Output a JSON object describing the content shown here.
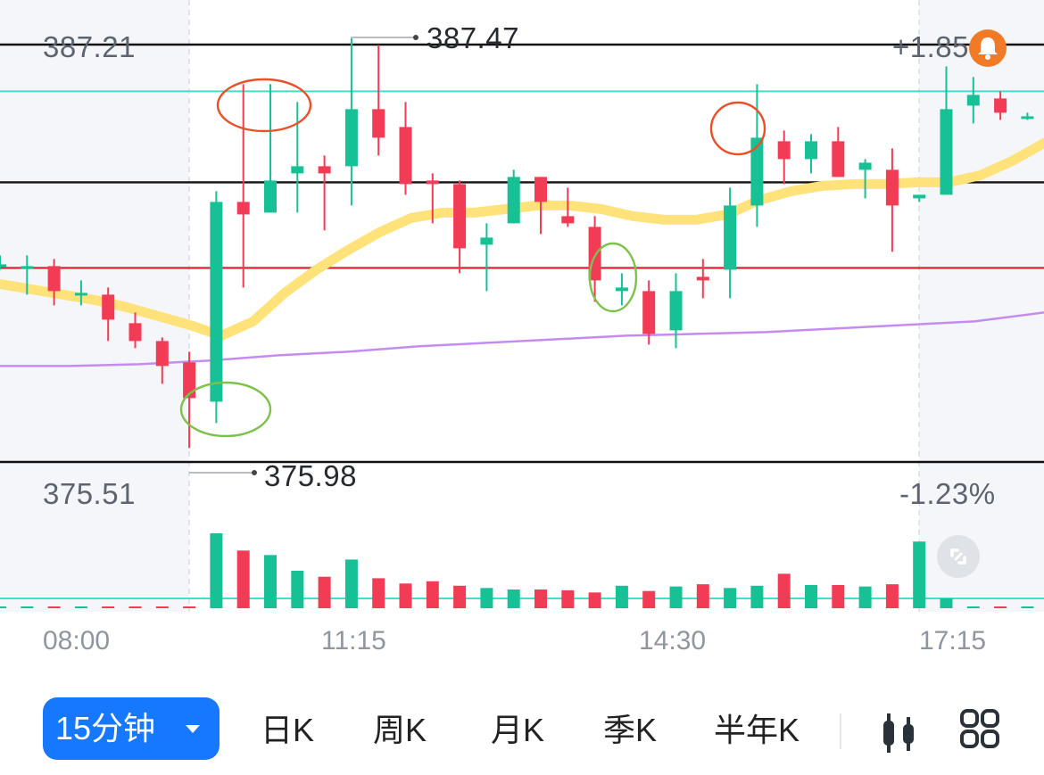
{
  "colors": {
    "up": "#17c095",
    "down": "#f23b55",
    "ma_short": "#ffe27a",
    "ma_long": "#c58cf0",
    "h_line_cyan": "#3fe0d0",
    "h_line_red": "#e0283c",
    "annot_red": "#e8502a",
    "annot_green": "#7cc24a",
    "accent": "#1677ff"
  },
  "price_axis": {
    "top": "387.21",
    "bottom": "375.51"
  },
  "pct_axis": {
    "top": "+1.85",
    "bottom": "-1.23%"
  },
  "markers": {
    "high": "387.47",
    "low": "375.98"
  },
  "time_axis": [
    "08:00",
    "11:15",
    "14:30",
    "17:15"
  ],
  "chart_data": {
    "type": "candlestick",
    "interval": "15分钟",
    "ylim": [
      375.51,
      387.21
    ],
    "high_marker": 387.47,
    "low_marker": 375.98,
    "x_ticks": [
      "08:00",
      "11:15",
      "14:30",
      "17:15"
    ],
    "candles": [
      {
        "o": 381.0,
        "h": 381.3,
        "l": 380.9,
        "c": 381.05
      },
      {
        "o": 380.95,
        "h": 381.3,
        "l": 380.2,
        "c": 381.0
      },
      {
        "o": 381.0,
        "h": 381.2,
        "l": 379.9,
        "c": 380.3
      },
      {
        "o": 380.25,
        "h": 380.6,
        "l": 379.9,
        "c": 380.25
      },
      {
        "o": 380.2,
        "h": 380.4,
        "l": 378.9,
        "c": 379.5
      },
      {
        "o": 379.4,
        "h": 379.7,
        "l": 378.7,
        "c": 378.9
      },
      {
        "o": 378.9,
        "h": 379.0,
        "l": 377.7,
        "c": 378.2
      },
      {
        "o": 378.3,
        "h": 378.6,
        "l": 375.9,
        "c": 377.3
      },
      {
        "o": 377.2,
        "h": 383.1,
        "l": 376.6,
        "c": 382.8
      },
      {
        "o": 382.8,
        "h": 386.1,
        "l": 380.4,
        "c": 382.45
      },
      {
        "o": 382.5,
        "h": 386.1,
        "l": 382.5,
        "c": 383.4
      },
      {
        "o": 383.6,
        "h": 385.6,
        "l": 382.5,
        "c": 383.8
      },
      {
        "o": 383.8,
        "h": 384.1,
        "l": 382.0,
        "c": 383.6
      },
      {
        "o": 383.8,
        "h": 387.4,
        "l": 382.7,
        "c": 385.4
      },
      {
        "o": 385.4,
        "h": 387.2,
        "l": 384.1,
        "c": 384.6
      },
      {
        "o": 384.9,
        "h": 385.6,
        "l": 383.0,
        "c": 383.3
      },
      {
        "o": 383.4,
        "h": 383.6,
        "l": 382.2,
        "c": 383.3
      },
      {
        "o": 383.3,
        "h": 383.4,
        "l": 380.8,
        "c": 381.5
      },
      {
        "o": 381.6,
        "h": 382.2,
        "l": 380.3,
        "c": 381.8
      },
      {
        "o": 382.2,
        "h": 383.7,
        "l": 382.2,
        "c": 383.5
      },
      {
        "o": 383.5,
        "h": 383.5,
        "l": 381.9,
        "c": 382.8
      },
      {
        "o": 382.4,
        "h": 383.2,
        "l": 382.1,
        "c": 382.2
      },
      {
        "o": 382.1,
        "h": 382.4,
        "l": 380.0,
        "c": 380.6
      },
      {
        "o": 380.3,
        "h": 380.8,
        "l": 379.9,
        "c": 380.4
      },
      {
        "o": 380.3,
        "h": 380.6,
        "l": 378.8,
        "c": 379.1
      },
      {
        "o": 379.2,
        "h": 380.8,
        "l": 378.7,
        "c": 380.3
      },
      {
        "o": 380.7,
        "h": 381.2,
        "l": 380.1,
        "c": 380.6
      },
      {
        "o": 380.9,
        "h": 383.2,
        "l": 380.1,
        "c": 382.7
      },
      {
        "o": 382.7,
        "h": 386.1,
        "l": 382.1,
        "c": 384.6
      },
      {
        "o": 384.5,
        "h": 384.8,
        "l": 383.3,
        "c": 384.0
      },
      {
        "o": 384.0,
        "h": 384.7,
        "l": 383.6,
        "c": 384.5
      },
      {
        "o": 384.5,
        "h": 384.9,
        "l": 383.5,
        "c": 383.5
      },
      {
        "o": 383.7,
        "h": 384.0,
        "l": 382.9,
        "c": 383.9
      },
      {
        "o": 383.7,
        "h": 384.3,
        "l": 381.4,
        "c": 382.7
      },
      {
        "o": 382.9,
        "h": 383.0,
        "l": 382.8,
        "c": 383.0
      },
      {
        "o": 383.0,
        "h": 386.6,
        "l": 383.0,
        "c": 385.4
      },
      {
        "o": 385.5,
        "h": 386.3,
        "l": 385.0,
        "c": 385.8
      },
      {
        "o": 385.7,
        "h": 385.9,
        "l": 385.1,
        "c": 385.3
      },
      {
        "o": 385.2,
        "h": 385.3,
        "l": 385.1,
        "c": 385.2
      }
    ],
    "volume": [
      0.02,
      0.02,
      0.02,
      0.01,
      0.01,
      0.01,
      0.01,
      0.02,
      1.0,
      0.77,
      0.71,
      0.5,
      0.42,
      0.65,
      0.4,
      0.33,
      0.36,
      0.3,
      0.27,
      0.25,
      0.25,
      0.24,
      0.21,
      0.3,
      0.23,
      0.29,
      0.32,
      0.27,
      0.3,
      0.46,
      0.31,
      0.31,
      0.29,
      0.32,
      0.89,
      0.13,
      0.02,
      0.02,
      0.02
    ],
    "ma_short": [
      380.5,
      380.35,
      380.2,
      380.05,
      379.85,
      379.6,
      379.35,
      379.05,
      379.45,
      380.25,
      380.9,
      381.45,
      381.95,
      382.35,
      382.5,
      382.5,
      382.6,
      382.7,
      382.7,
      382.6,
      382.4,
      382.3,
      382.3,
      382.45,
      382.85,
      383.1,
      383.25,
      383.3,
      383.3,
      383.35,
      383.35,
      383.55,
      383.95,
      384.45
    ],
    "ma_long": [
      378.2,
      378.2,
      378.25,
      378.35,
      378.5,
      378.6,
      378.75,
      378.85,
      378.95,
      379.05,
      379.1,
      379.15,
      379.25,
      379.35,
      379.45,
      379.7
    ],
    "h_lines": [
      387.21,
      385.9,
      383.35,
      380.95,
      375.51
    ]
  },
  "toolbar": {
    "timeframe_label": "15分钟",
    "items": [
      "日K",
      "周K",
      "月K",
      "季K",
      "半年K"
    ]
  }
}
